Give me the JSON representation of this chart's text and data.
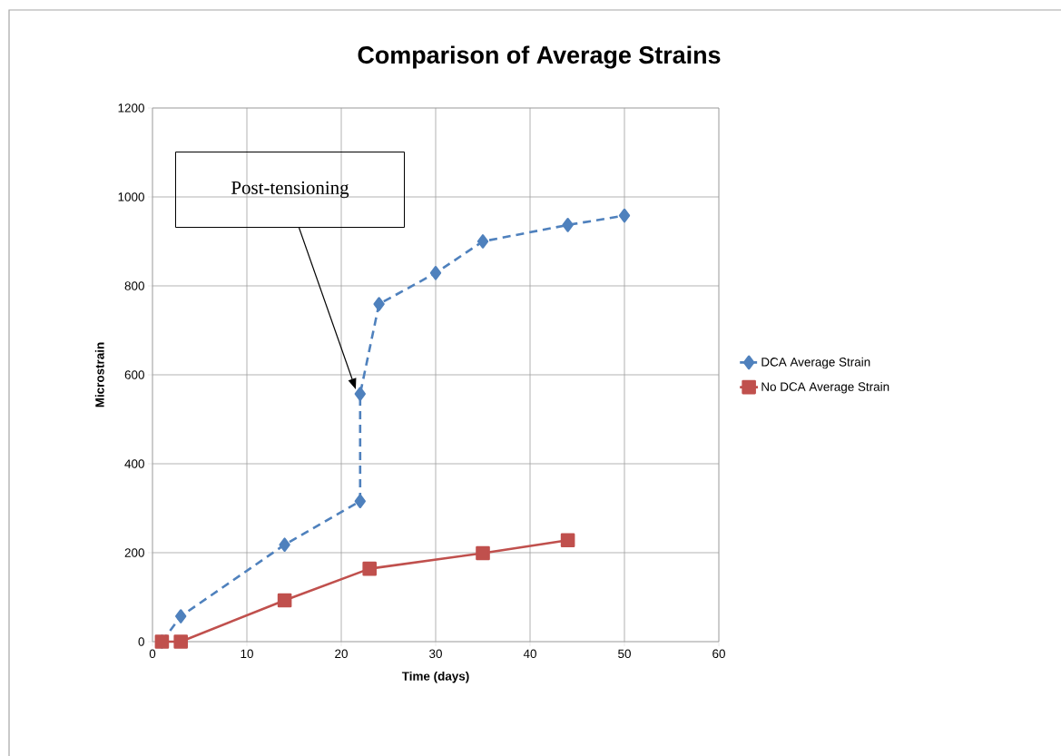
{
  "chart_data": {
    "type": "line",
    "title": "Comparison of Average Strains",
    "xlabel": "Time (days)",
    "ylabel": "Microstrain",
    "xlim": [
      0,
      60
    ],
    "ylim": [
      0,
      1200
    ],
    "xticks": [
      0,
      10,
      20,
      30,
      40,
      50,
      60
    ],
    "yticks": [
      0,
      200,
      400,
      600,
      800,
      1000,
      1200
    ],
    "grid": true,
    "legend": "right",
    "series": [
      {
        "name": "DCA Average Strain",
        "color": "#4f81bd",
        "marker": "diamond",
        "line_style": "dashed",
        "x": [
          1,
          3,
          14,
          22,
          22,
          24,
          30,
          35,
          44,
          50
        ],
        "values": [
          0,
          57,
          218,
          316,
          557,
          759,
          829,
          900,
          937,
          958
        ]
      },
      {
        "name": "No DCA Average Strain",
        "color": "#c0504d",
        "marker": "square",
        "line_style": "solid",
        "x": [
          1,
          3,
          14,
          23,
          35,
          44
        ],
        "values": [
          0,
          0,
          93,
          164,
          199,
          228
        ]
      }
    ],
    "annotations": [
      "Post-tensioning"
    ]
  }
}
